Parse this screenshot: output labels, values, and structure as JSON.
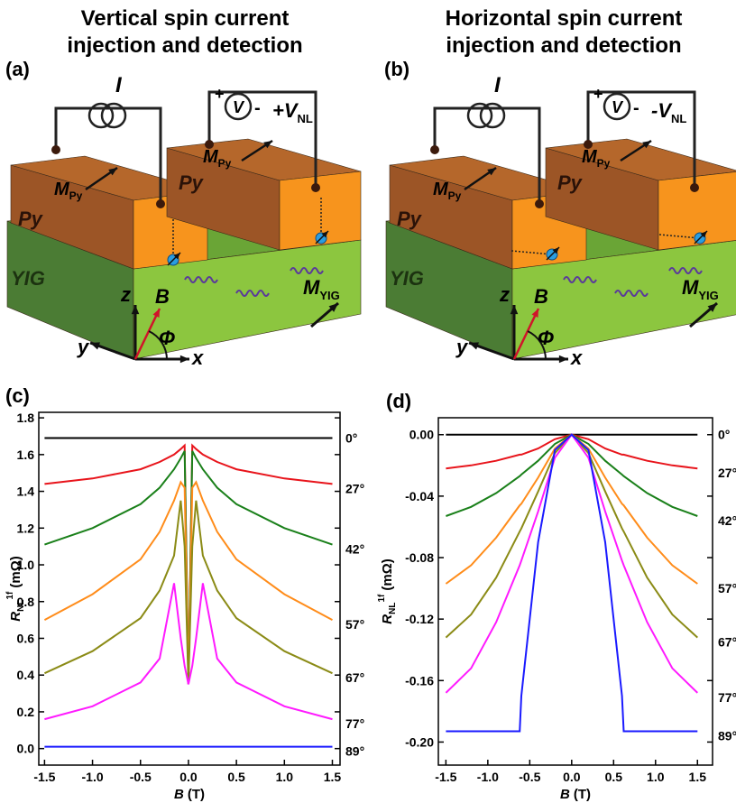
{
  "panels": [
    {
      "label": "(a)",
      "title": [
        "Vertical spin current",
        "injection and detection"
      ],
      "current": "I",
      "plus": "+",
      "minus": "-",
      "voltmeter": "V",
      "signal": "+V",
      "signal_sub": "NL",
      "magnet_symbol": "M",
      "magnet_sub": "Py",
      "material_py": "Py",
      "material_yig": "YIG",
      "axes": [
        "z",
        "y",
        "x"
      ],
      "field": "B",
      "angle": "Φ",
      "yig_magnet_sub": "YIG"
    },
    {
      "label": "(b)",
      "title": [
        "Horizontal spin current",
        "injection and detection"
      ],
      "current": "I",
      "plus": "+",
      "minus": "-",
      "voltmeter": "V",
      "signal": "-V",
      "signal_sub": "NL",
      "magnet_symbol": "M",
      "magnet_sub": "Py",
      "material_py": "Py",
      "material_yig": "YIG",
      "axes": [
        "z",
        "y",
        "x"
      ],
      "field": "B",
      "angle": "Φ",
      "yig_magnet_sub": "YIG"
    }
  ],
  "chart_data": [
    {
      "type": "line",
      "label": "(c)",
      "x": [
        -1.5,
        -1.0,
        -0.5,
        -0.3,
        -0.15,
        -0.08,
        -0.04,
        0,
        0.04,
        0.08,
        0.15,
        0.3,
        0.5,
        1.0,
        1.5
      ],
      "series": [
        {
          "name": "0°",
          "color": "#000000",
          "values": [
            1.69,
            1.69,
            1.69,
            1.69,
            1.69,
            1.69,
            1.69,
            1.69,
            1.69,
            1.69,
            1.69,
            1.69,
            1.69,
            1.69,
            1.69
          ]
        },
        {
          "name": "27°",
          "color": "#e8141b",
          "values": [
            1.44,
            1.47,
            1.52,
            1.56,
            1.6,
            1.63,
            1.65,
            0.35,
            1.65,
            1.63,
            1.6,
            1.56,
            1.52,
            1.47,
            1.44
          ]
        },
        {
          "name": "42°",
          "color": "#1a801a",
          "values": [
            1.11,
            1.2,
            1.33,
            1.42,
            1.52,
            1.58,
            1.62,
            0.35,
            1.62,
            1.58,
            1.52,
            1.42,
            1.33,
            1.2,
            1.11
          ]
        },
        {
          "name": "57°",
          "color": "#ff8c1a",
          "values": [
            0.7,
            0.84,
            1.03,
            1.18,
            1.35,
            1.45,
            1.42,
            0.35,
            1.42,
            1.45,
            1.35,
            1.18,
            1.03,
            0.84,
            0.7
          ]
        },
        {
          "name": "67°",
          "color": "#8b8b16",
          "values": [
            0.41,
            0.53,
            0.71,
            0.86,
            1.05,
            1.35,
            1.1,
            0.35,
            1.1,
            1.35,
            1.05,
            0.86,
            0.71,
            0.53,
            0.41
          ]
        },
        {
          "name": "77°",
          "color": "#ff1aff",
          "values": [
            0.16,
            0.23,
            0.36,
            0.49,
            0.9,
            0.6,
            0.45,
            0.35,
            0.45,
            0.6,
            0.9,
            0.49,
            0.36,
            0.23,
            0.16
          ]
        },
        {
          "name": "89°",
          "color": "#1a1aff",
          "values": [
            0.01,
            0.01,
            0.01,
            0.01,
            0.01,
            0.01,
            0.01,
            0.01,
            0.01,
            0.01,
            0.01,
            0.01,
            0.01,
            0.01,
            0.01
          ]
        }
      ],
      "xlim": [
        -1.56,
        1.58
      ],
      "ylim": [
        -0.09,
        1.83
      ],
      "xticks": [
        -1.5,
        {
          "value": -1.0,
          "label": "-1.0"
        },
        -0.5,
        {
          "value": 0,
          "label": "0.0"
        },
        0.5,
        {
          "value": 1.0,
          "label": "1.0"
        },
        1.5
      ],
      "yticks": [
        {
          "value": 0,
          "label": "0.0"
        },
        0.2,
        0.4,
        0.6,
        0.8,
        {
          "value": 1.0,
          "label": "1.0"
        },
        1.2,
        1.4,
        1.6,
        1.8
      ],
      "y_label": {
        "symbol": "R",
        "sub": "NL",
        "sup": "1f",
        "unit": "(mΩ)"
      },
      "x_label": {
        "symbol": "B",
        "unit": "(T)"
      }
    },
    {
      "type": "line",
      "label": "(d)",
      "x": [
        -1.5,
        -1.2,
        -0.9,
        -0.62,
        -0.6,
        -0.4,
        -0.2,
        0,
        0.2,
        0.4,
        0.6,
        0.62,
        0.9,
        1.2,
        1.5
      ],
      "series": [
        {
          "name": "0°",
          "color": "#000000",
          "values": [
            0,
            0,
            0,
            0,
            0,
            0,
            0,
            0,
            0,
            0,
            0,
            0,
            0,
            0,
            0
          ]
        },
        {
          "name": "27°",
          "color": "#e8141b",
          "values": [
            -0.022,
            -0.02,
            -0.017,
            -0.013,
            -0.013,
            -0.009,
            -0.003,
            0,
            -0.003,
            -0.009,
            -0.013,
            -0.013,
            -0.017,
            -0.02,
            -0.022
          ]
        },
        {
          "name": "42°",
          "color": "#1a801a",
          "values": [
            -0.053,
            -0.047,
            -0.038,
            -0.027,
            -0.026,
            -0.017,
            -0.006,
            0,
            -0.006,
            -0.017,
            -0.026,
            -0.027,
            -0.038,
            -0.047,
            -0.053
          ]
        },
        {
          "name": "57°",
          "color": "#ff8c1a",
          "values": [
            -0.097,
            -0.085,
            -0.067,
            -0.046,
            -0.045,
            -0.028,
            -0.009,
            0,
            -0.009,
            -0.028,
            -0.045,
            -0.046,
            -0.067,
            -0.085,
            -0.097
          ]
        },
        {
          "name": "67°",
          "color": "#8b8b16",
          "values": [
            -0.132,
            -0.117,
            -0.093,
            -0.063,
            -0.061,
            -0.037,
            -0.012,
            0,
            -0.012,
            -0.037,
            -0.061,
            -0.063,
            -0.093,
            -0.117,
            -0.132
          ]
        },
        {
          "name": "77°",
          "color": "#ff1aff",
          "values": [
            -0.168,
            -0.152,
            -0.122,
            -0.085,
            -0.082,
            -0.05,
            -0.015,
            0,
            -0.015,
            -0.05,
            -0.082,
            -0.085,
            -0.122,
            -0.152,
            -0.168
          ]
        },
        {
          "name": "89°",
          "color": "#1a1aff",
          "values": [
            -0.193,
            -0.193,
            -0.193,
            -0.193,
            -0.17,
            -0.07,
            -0.01,
            0,
            -0.01,
            -0.07,
            -0.17,
            -0.193,
            -0.193,
            -0.193,
            -0.193
          ]
        }
      ],
      "xlim": [
        -1.59,
        1.68
      ],
      "ylim": [
        -0.215,
        0.011
      ],
      "xticks": [
        -1.5,
        {
          "value": -1.0,
          "label": "-1.0"
        },
        -0.5,
        {
          "value": 0,
          "label": "0.0"
        },
        0.5,
        {
          "value": 1.0,
          "label": "1.0"
        },
        1.5
      ],
      "yticks": [
        {
          "value": -0.2,
          "label": "-0.20"
        },
        -0.16,
        -0.12,
        -0.08,
        -0.04,
        {
          "value": 0,
          "label": "0.00"
        }
      ],
      "y_label": {
        "symbol": "R",
        "sub": "NL",
        "sup": "1f",
        "unit": "(mΩ)"
      },
      "x_label": {
        "symbol": "B",
        "unit": "(T)"
      }
    }
  ]
}
